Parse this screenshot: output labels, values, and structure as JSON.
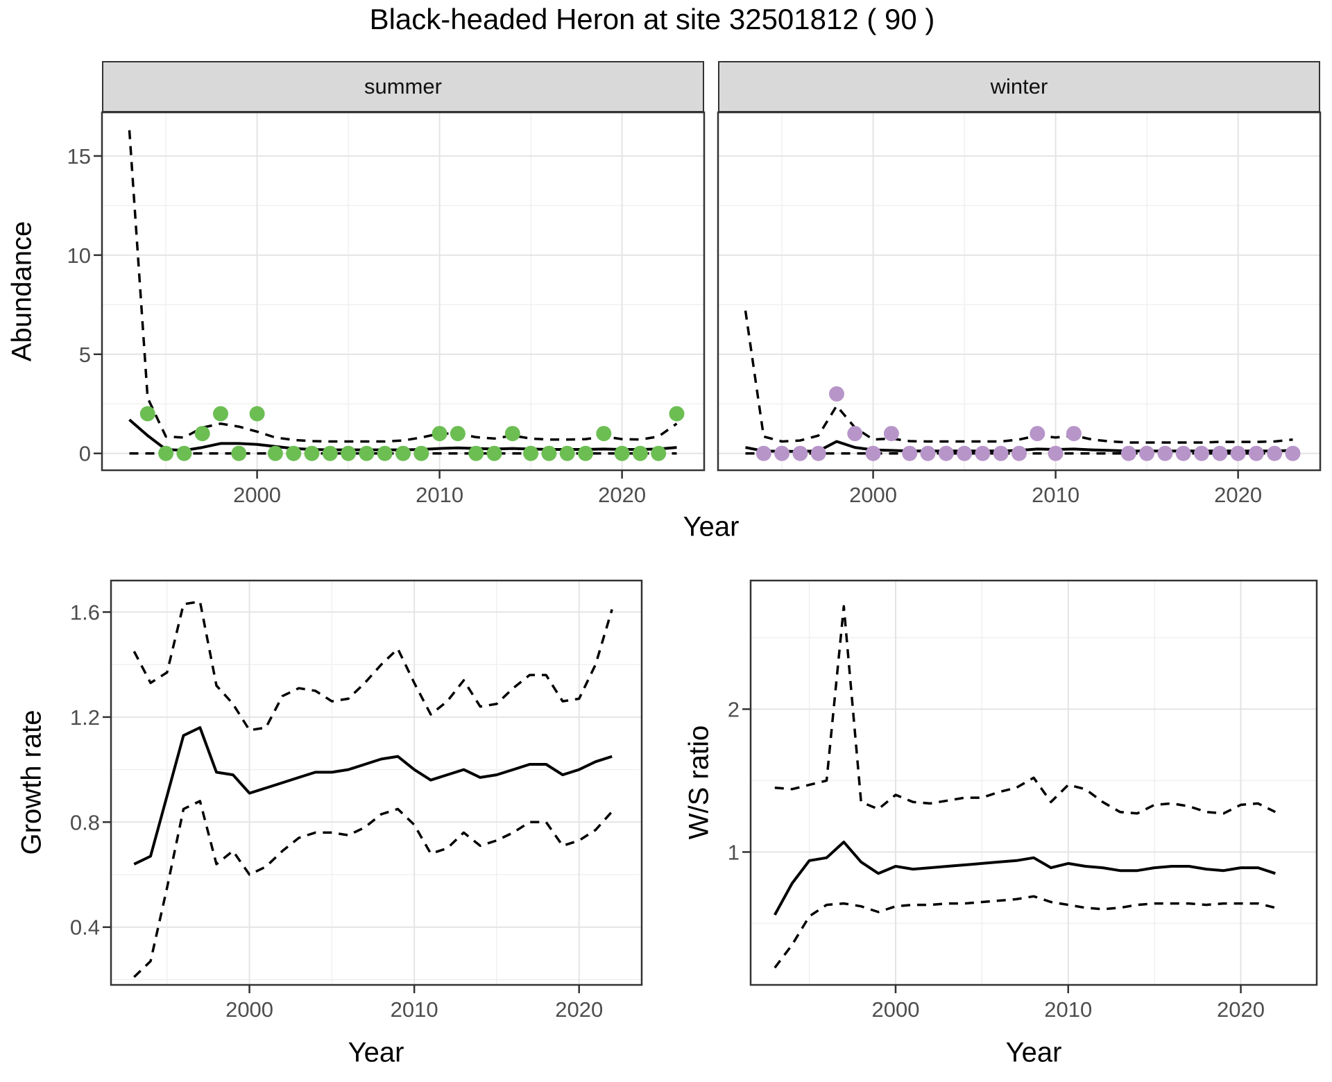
{
  "title": "Black-headed Heron at site 32501812 ( 90 )",
  "top_row": {
    "ylabel": "Abundance",
    "xlabel": "Year"
  },
  "style": {
    "panel_bg": "#ffffff",
    "panel_border": "#333333",
    "grid_major": "#e4e4e4",
    "grid_minor": "#f0f0f0",
    "tick_color": "#333333",
    "tick_label_color": "#4d4d4d",
    "line_color": "#000000",
    "summer_point_color": "#6cbe53",
    "winter_point_color": "#b795c9",
    "strip_bg": "#d9d9d9"
  },
  "chart_data": [
    {
      "id": "abundance-summer",
      "type": "line",
      "facet": "summer",
      "title": "",
      "xlabel": "Year",
      "ylabel": "Abundance",
      "xlim": [
        1991.5,
        2024.5
      ],
      "ylim": [
        -0.85,
        17.2
      ],
      "xticks": [
        2000,
        2010,
        2020
      ],
      "xtick_labels": [
        "2000",
        "2010",
        "2020"
      ],
      "xticks_minor": [
        1995,
        2005,
        2015
      ],
      "yticks": [
        0,
        5,
        10,
        15
      ],
      "ytick_labels": [
        "0",
        "5",
        "10",
        "15"
      ],
      "yticks_minor": [
        2.5,
        7.5,
        12.5
      ],
      "x": [
        1993,
        1994,
        1995,
        1996,
        1997,
        1998,
        1999,
        2000,
        2001,
        2002,
        2003,
        2004,
        2005,
        2006,
        2007,
        2008,
        2009,
        2010,
        2011,
        2012,
        2013,
        2014,
        2015,
        2016,
        2017,
        2018,
        2019,
        2020,
        2021,
        2022,
        2023
      ],
      "series": [
        {
          "name": "upper_95ci",
          "style": "dashed",
          "values": [
            16.3,
            2.8,
            0.85,
            0.8,
            1.3,
            1.5,
            1.35,
            1.1,
            0.8,
            0.68,
            0.62,
            0.6,
            0.6,
            0.6,
            0.6,
            0.65,
            0.8,
            1.0,
            1.0,
            0.82,
            0.75,
            0.9,
            0.75,
            0.7,
            0.7,
            0.72,
            0.85,
            0.72,
            0.7,
            0.85,
            1.5
          ]
        },
        {
          "name": "lower_95ci",
          "style": "dashed",
          "values": [
            0,
            0,
            0,
            0,
            0,
            0,
            0,
            0,
            0,
            0,
            0,
            0,
            0,
            0,
            0,
            0,
            0,
            0,
            0,
            0,
            0,
            0,
            0,
            0,
            0,
            0,
            0,
            0,
            0,
            0,
            0
          ]
        },
        {
          "name": "median",
          "style": "solid",
          "values": [
            1.7,
            0.9,
            0.2,
            0.15,
            0.3,
            0.5,
            0.5,
            0.45,
            0.35,
            0.25,
            0.2,
            0.18,
            0.18,
            0.18,
            0.18,
            0.18,
            0.2,
            0.25,
            0.28,
            0.25,
            0.22,
            0.25,
            0.22,
            0.2,
            0.2,
            0.2,
            0.22,
            0.2,
            0.2,
            0.22,
            0.3
          ]
        }
      ],
      "points": {
        "name": "observed-counts-summer",
        "color": "#6cbe53",
        "x": [
          1994,
          1995,
          1996,
          1997,
          1998,
          1999,
          2000,
          2001,
          2002,
          2003,
          2004,
          2005,
          2006,
          2007,
          2008,
          2009,
          2010,
          2011,
          2012,
          2013,
          2014,
          2015,
          2016,
          2017,
          2018,
          2019,
          2020,
          2021,
          2022,
          2023
        ],
        "values": [
          2,
          0,
          0,
          1,
          2,
          0,
          2,
          0,
          0,
          0,
          0,
          0,
          0,
          0,
          0,
          0,
          1,
          1,
          0,
          0,
          1,
          0,
          0,
          0,
          0,
          1,
          0,
          0,
          0,
          2
        ]
      }
    },
    {
      "id": "abundance-winter",
      "type": "line",
      "facet": "winter",
      "title": "",
      "xlabel": "Year",
      "ylabel": "Abundance",
      "xlim": [
        1991.5,
        2024.5
      ],
      "ylim": [
        -0.85,
        17.2
      ],
      "xticks": [
        2000,
        2010,
        2020
      ],
      "xtick_labels": [
        "2000",
        "2010",
        "2020"
      ],
      "xticks_minor": [
        1995,
        2005,
        2015
      ],
      "yticks": [
        0,
        5,
        10,
        15
      ],
      "ytick_labels": [
        "0",
        "5",
        "10",
        "15"
      ],
      "yticks_minor": [
        2.5,
        7.5,
        12.5
      ],
      "x": [
        1993,
        1994,
        1995,
        1996,
        1997,
        1998,
        1999,
        2000,
        2001,
        2002,
        2003,
        2004,
        2005,
        2006,
        2007,
        2008,
        2009,
        2010,
        2011,
        2012,
        2013,
        2014,
        2015,
        2016,
        2017,
        2018,
        2019,
        2020,
        2021,
        2022,
        2023
      ],
      "series": [
        {
          "name": "upper_95ci",
          "style": "dashed",
          "values": [
            7.2,
            0.85,
            0.6,
            0.65,
            0.9,
            2.4,
            1.3,
            0.7,
            0.75,
            0.62,
            0.6,
            0.6,
            0.6,
            0.6,
            0.6,
            0.7,
            0.9,
            0.8,
            0.9,
            0.7,
            0.6,
            0.55,
            0.55,
            0.55,
            0.55,
            0.55,
            0.58,
            0.58,
            0.58,
            0.6,
            0.7
          ]
        },
        {
          "name": "lower_95ci",
          "style": "dashed",
          "values": [
            0,
            0,
            0,
            0,
            0,
            0,
            0,
            0,
            0,
            0,
            0,
            0,
            0,
            0,
            0,
            0,
            0,
            0,
            0,
            0,
            0,
            0,
            0,
            0,
            0,
            0,
            0,
            0,
            0,
            0,
            0
          ]
        },
        {
          "name": "median",
          "style": "solid",
          "values": [
            0.3,
            0.12,
            0.1,
            0.1,
            0.12,
            0.6,
            0.3,
            0.18,
            0.15,
            0.12,
            0.12,
            0.12,
            0.12,
            0.12,
            0.12,
            0.15,
            0.22,
            0.2,
            0.22,
            0.18,
            0.15,
            0.12,
            0.12,
            0.12,
            0.12,
            0.12,
            0.12,
            0.12,
            0.12,
            0.12,
            0.15
          ]
        }
      ],
      "points": {
        "name": "observed-counts-winter",
        "color": "#b795c9",
        "x": [
          1994,
          1995,
          1996,
          1997,
          1998,
          1999,
          2000,
          2001,
          2002,
          2003,
          2004,
          2005,
          2006,
          2007,
          2008,
          2009,
          2010,
          2011,
          2014,
          2015,
          2016,
          2017,
          2018,
          2019,
          2020,
          2021,
          2022,
          2023
        ],
        "values": [
          0,
          0,
          0,
          0,
          3,
          1,
          0,
          1,
          0,
          0,
          0,
          0,
          0,
          0,
          0,
          1,
          0,
          1,
          0,
          0,
          0,
          0,
          0,
          0,
          0,
          0,
          0,
          0
        ]
      }
    },
    {
      "id": "growth-rate",
      "type": "line",
      "facet": "",
      "title": "",
      "xlabel": "Year",
      "ylabel": "Growth rate",
      "xlim": [
        1991.6,
        2023.8
      ],
      "ylim": [
        0.18,
        1.72
      ],
      "xticks": [
        2000,
        2010,
        2020
      ],
      "xtick_labels": [
        "2000",
        "2010",
        "2020"
      ],
      "xticks_minor": [
        1995,
        2005,
        2015
      ],
      "yticks": [
        0.4,
        0.8,
        1.2,
        1.6
      ],
      "ytick_labels": [
        "0.4",
        "0.8",
        "1.2",
        "1.6"
      ],
      "yticks_minor": [
        0.2,
        0.6,
        1.0,
        1.4
      ],
      "x": [
        1993,
        1994,
        1995,
        1996,
        1997,
        1998,
        1999,
        2000,
        2001,
        2002,
        2003,
        2004,
        2005,
        2006,
        2007,
        2008,
        2009,
        2010,
        2011,
        2012,
        2013,
        2014,
        2015,
        2016,
        2017,
        2018,
        2019,
        2020,
        2021,
        2022
      ],
      "series": [
        {
          "name": "upper_95ci",
          "style": "dashed",
          "values": [
            1.45,
            1.33,
            1.37,
            1.63,
            1.64,
            1.32,
            1.25,
            1.15,
            1.16,
            1.28,
            1.31,
            1.3,
            1.26,
            1.27,
            1.33,
            1.4,
            1.46,
            1.33,
            1.21,
            1.26,
            1.34,
            1.24,
            1.25,
            1.31,
            1.36,
            1.36,
            1.26,
            1.27,
            1.4,
            1.61
          ]
        },
        {
          "name": "lower_95ci",
          "style": "dashed",
          "values": [
            0.21,
            0.27,
            0.55,
            0.85,
            0.88,
            0.64,
            0.69,
            0.6,
            0.63,
            0.69,
            0.74,
            0.76,
            0.76,
            0.75,
            0.78,
            0.83,
            0.85,
            0.79,
            0.68,
            0.7,
            0.76,
            0.71,
            0.73,
            0.76,
            0.8,
            0.8,
            0.71,
            0.73,
            0.77,
            0.84
          ]
        },
        {
          "name": "median",
          "style": "solid",
          "values": [
            0.64,
            0.67,
            0.9,
            1.13,
            1.16,
            0.99,
            0.98,
            0.91,
            0.93,
            0.95,
            0.97,
            0.99,
            0.99,
            1.0,
            1.02,
            1.04,
            1.05,
            1.0,
            0.96,
            0.98,
            1.0,
            0.97,
            0.98,
            1.0,
            1.02,
            1.02,
            0.98,
            1.0,
            1.03,
            1.05
          ]
        }
      ],
      "points": null
    },
    {
      "id": "ws-ratio",
      "type": "line",
      "facet": "",
      "title": "",
      "xlabel": "Year",
      "ylabel": "W/S ratio",
      "xlim": [
        1991.6,
        2024.4
      ],
      "ylim": [
        0.07,
        2.9
      ],
      "xticks": [
        2000,
        2010,
        2020
      ],
      "xtick_labels": [
        "2000",
        "2010",
        "2020"
      ],
      "xticks_minor": [
        1995,
        2005,
        2015
      ],
      "yticks": [
        1,
        2
      ],
      "ytick_labels": [
        "1",
        "2"
      ],
      "yticks_minor": [
        0.5,
        1.5,
        2.5
      ],
      "x": [
        1993,
        1994,
        1995,
        1996,
        1997,
        1998,
        1999,
        2000,
        2001,
        2002,
        2003,
        2004,
        2005,
        2006,
        2007,
        2008,
        2009,
        2010,
        2011,
        2012,
        2013,
        2014,
        2015,
        2016,
        2017,
        2018,
        2019,
        2020,
        2021,
        2022
      ],
      "series": [
        {
          "name": "upper_95ci",
          "style": "dashed",
          "values": [
            1.45,
            1.44,
            1.47,
            1.5,
            2.72,
            1.35,
            1.3,
            1.4,
            1.35,
            1.34,
            1.36,
            1.38,
            1.38,
            1.42,
            1.45,
            1.52,
            1.35,
            1.47,
            1.44,
            1.35,
            1.28,
            1.27,
            1.33,
            1.34,
            1.32,
            1.28,
            1.27,
            1.33,
            1.34,
            1.28
          ]
        },
        {
          "name": "lower_95ci",
          "style": "dashed",
          "values": [
            0.19,
            0.35,
            0.55,
            0.63,
            0.64,
            0.62,
            0.58,
            0.62,
            0.63,
            0.63,
            0.64,
            0.64,
            0.65,
            0.66,
            0.67,
            0.69,
            0.65,
            0.63,
            0.61,
            0.6,
            0.61,
            0.63,
            0.64,
            0.64,
            0.64,
            0.63,
            0.64,
            0.64,
            0.64,
            0.61
          ]
        },
        {
          "name": "median",
          "style": "solid",
          "values": [
            0.56,
            0.78,
            0.94,
            0.96,
            1.07,
            0.93,
            0.85,
            0.9,
            0.88,
            0.89,
            0.9,
            0.91,
            0.92,
            0.93,
            0.94,
            0.96,
            0.89,
            0.92,
            0.9,
            0.89,
            0.87,
            0.87,
            0.89,
            0.9,
            0.9,
            0.88,
            0.87,
            0.89,
            0.89,
            0.85
          ]
        }
      ],
      "points": null
    }
  ]
}
